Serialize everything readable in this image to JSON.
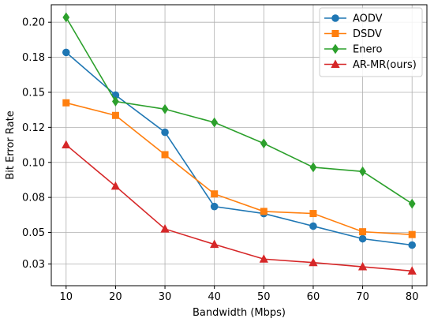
{
  "chart_data": {
    "type": "line",
    "title": "",
    "xlabel": "Bandwidth (Mbps)",
    "ylabel": "Bit Error Rate",
    "x": [
      10,
      20,
      30,
      40,
      50,
      60,
      70,
      80
    ],
    "x_ticks": [
      "10",
      "20",
      "30",
      "40",
      "50",
      "60",
      "70",
      "80"
    ],
    "xlim": [
      7,
      83
    ],
    "y_ticks": [
      {
        "value": 0.0275,
        "label": "0.03"
      },
      {
        "value": 0.05,
        "label": "0.05"
      },
      {
        "value": 0.075,
        "label": "0.08"
      },
      {
        "value": 0.1,
        "label": "0.10"
      },
      {
        "value": 0.125,
        "label": "0.12"
      },
      {
        "value": 0.15,
        "label": "0.15"
      },
      {
        "value": 0.175,
        "label": "0.18"
      },
      {
        "value": 0.2,
        "label": "0.20"
      }
    ],
    "ylim": [
      0.012,
      0.2125
    ],
    "grid": true,
    "legend_position": "top-right",
    "series": [
      {
        "name": "AODV",
        "color": "#1f77b4",
        "marker": "circle",
        "values": [
          0.1785,
          0.148,
          0.1215,
          0.0685,
          0.0635,
          0.0545,
          0.0455,
          0.041
        ]
      },
      {
        "name": "DSDV",
        "color": "#ff7f0e",
        "marker": "square",
        "values": [
          0.1425,
          0.1335,
          0.1055,
          0.0775,
          0.065,
          0.0635,
          0.0505,
          0.0485
        ]
      },
      {
        "name": "Enero",
        "color": "#2ca02c",
        "marker": "diamond",
        "values": [
          0.2035,
          0.1435,
          0.138,
          0.1285,
          0.1135,
          0.0965,
          0.0935,
          0.0705
        ]
      },
      {
        "name": "AR-MR(ours)",
        "color": "#d62728",
        "marker": "triangle",
        "values": [
          0.1125,
          0.083,
          0.0525,
          0.0415,
          0.031,
          0.0285,
          0.0255,
          0.0225
        ]
      }
    ]
  }
}
